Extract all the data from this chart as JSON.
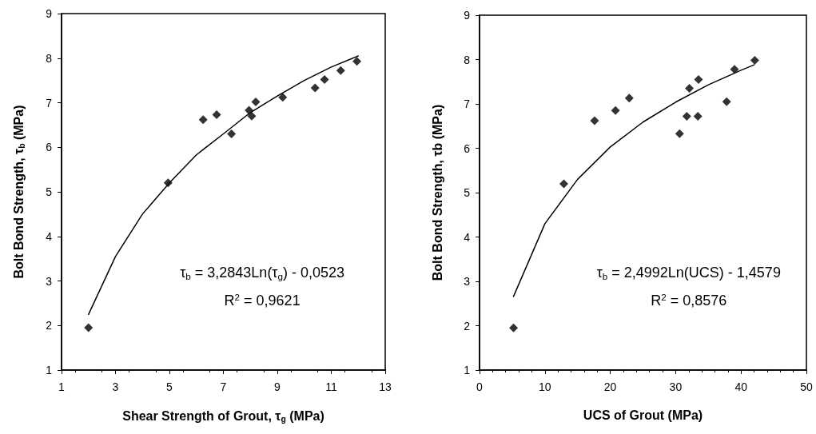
{
  "chart_data": [
    {
      "type": "scatter",
      "xlabel": "Shear Strength of Grout, τ$_{g}$ (MPa)",
      "ylabel": "Bolt Bond Strength, τ$_{b}$ (MPa)",
      "xlim": [
        1,
        13
      ],
      "xticks": [
        1,
        3,
        5,
        7,
        9,
        11,
        13
      ],
      "ylim": [
        1,
        9
      ],
      "yticks": [
        1,
        2,
        3,
        4,
        5,
        6,
        7,
        8,
        9
      ],
      "annotations": [
        "τ$_{b}$ = 3,2843Ln(τ$_{g}$) - 0,0523",
        "R$^{2}$ = 0,9621"
      ],
      "series": [
        {
          "type": "scatter",
          "marker": "diamond",
          "color": "#000000",
          "x": [
            2.0,
            4.95,
            6.25,
            6.75,
            7.3,
            7.95,
            8.05,
            8.2,
            9.2,
            10.4,
            10.75,
            11.35,
            11.95
          ],
          "values": [
            1.95,
            5.2,
            6.62,
            6.73,
            6.3,
            6.83,
            6.7,
            7.02,
            7.12,
            7.33,
            7.52,
            7.72,
            7.93
          ]
        },
        {
          "type": "line",
          "marker": "none",
          "color": "#000000",
          "x": [
            2,
            3,
            4,
            5,
            6,
            7,
            8,
            9,
            10,
            11,
            12
          ],
          "values": [
            2.25,
            3.55,
            4.5,
            5.2,
            5.83,
            6.3,
            6.78,
            7.15,
            7.5,
            7.8,
            8.05
          ]
        }
      ]
    },
    {
      "type": "scatter",
      "xlabel": "UCS of Grout (MPa)",
      "ylabel": "Bolt Bond Strength, τb (MPa)",
      "xlim": [
        0,
        50
      ],
      "xticks": [
        0,
        10,
        20,
        30,
        40,
        50
      ],
      "ylim": [
        1,
        9
      ],
      "yticks": [
        1,
        2,
        3,
        4,
        5,
        6,
        7,
        8,
        9
      ],
      "annotations": [
        "τ$_{b}$ = 2,4992Ln(UCS) - 1,4579",
        "R$^{2}$ = 0,8576"
      ],
      "series": [
        {
          "type": "scatter",
          "marker": "diamond",
          "color": "#000000",
          "x": [
            5.2,
            12.9,
            17.6,
            20.8,
            22.9,
            30.6,
            31.7,
            32.1,
            33.4,
            33.5,
            37.8,
            39,
            42.1
          ],
          "values": [
            1.95,
            5.2,
            6.62,
            6.85,
            7.13,
            6.33,
            6.72,
            7.35,
            6.72,
            7.55,
            7.05,
            7.78,
            7.98
          ]
        },
        {
          "type": "line",
          "marker": "none",
          "color": "#000000",
          "x": [
            5.2,
            10,
            15,
            20,
            25,
            30,
            35,
            40,
            42
          ],
          "values": [
            2.66,
            4.3,
            5.3,
            6.03,
            6.59,
            7.04,
            7.43,
            7.76,
            7.88
          ]
        }
      ]
    }
  ]
}
